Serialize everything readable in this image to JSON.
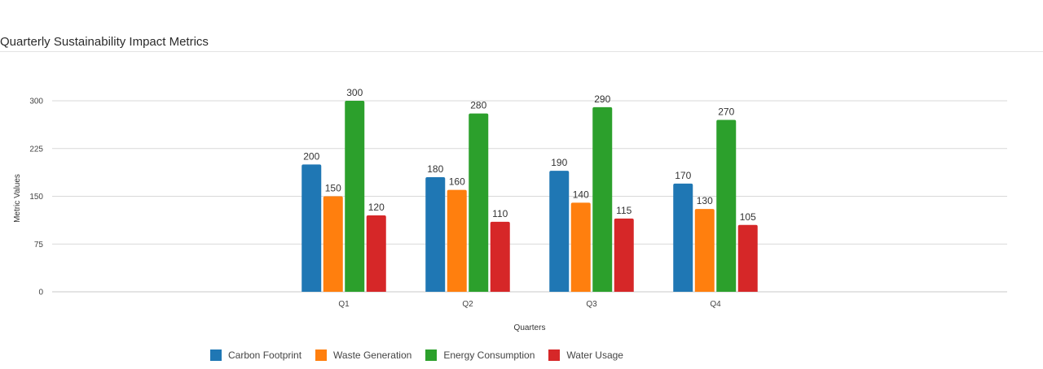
{
  "header": {
    "title": "Quarterly Sustainability Impact Metrics"
  },
  "chart_data": {
    "type": "bar",
    "title": "Quarterly Sustainability Impact Metrics",
    "xlabel": "Quarters",
    "ylabel": "Metric Values",
    "categories": [
      "Q1",
      "Q2",
      "Q3",
      "Q4"
    ],
    "ylim": [
      0,
      300
    ],
    "yticks": [
      0,
      75,
      150,
      225,
      300
    ],
    "grid": true,
    "legend_position": "bottom",
    "series": [
      {
        "name": "Carbon Footprint",
        "color": "#1f77b4",
        "values": [
          200,
          180,
          190,
          170
        ]
      },
      {
        "name": "Waste Generation",
        "color": "#ff7f0e",
        "values": [
          150,
          160,
          140,
          130
        ]
      },
      {
        "name": "Energy Consumption",
        "color": "#2ca02c",
        "values": [
          300,
          280,
          290,
          270
        ]
      },
      {
        "name": "Water Usage",
        "color": "#d62728",
        "values": [
          120,
          110,
          115,
          105
        ]
      }
    ]
  }
}
